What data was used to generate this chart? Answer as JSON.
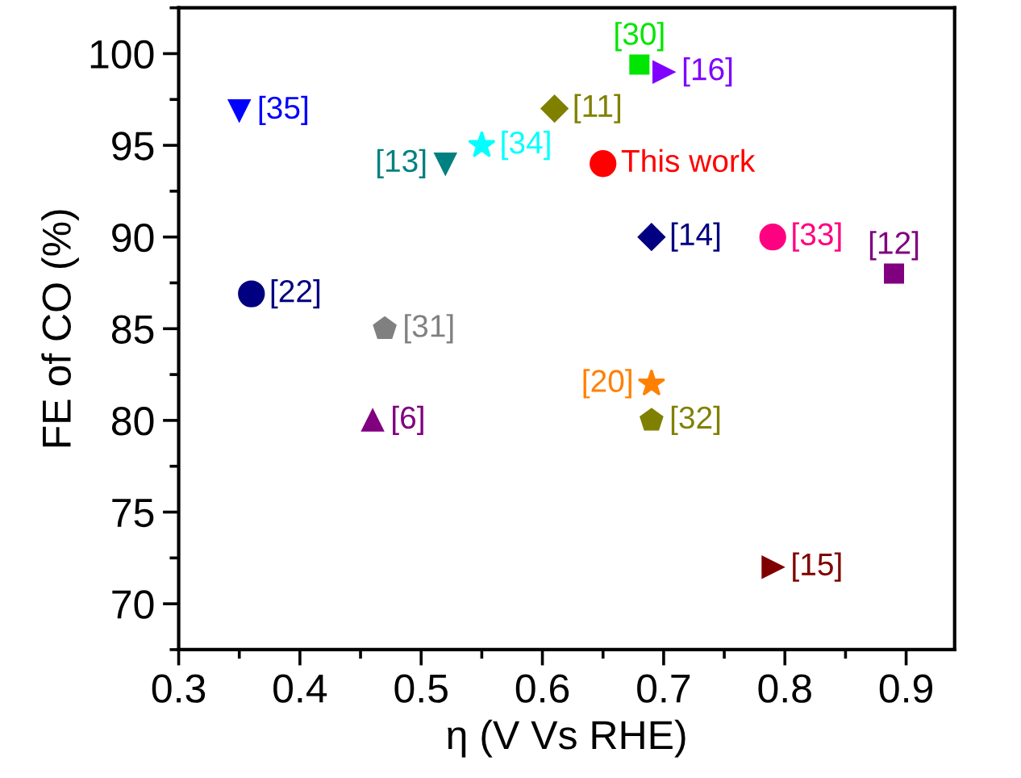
{
  "chart_data": {
    "type": "scatter",
    "xlabel": "η (V Vs RHE)",
    "ylabel": "FE of CO (%)",
    "xlim": [
      0.3,
      0.94
    ],
    "ylim": [
      67.5,
      102.5
    ],
    "xticks": [
      0.3,
      0.4,
      0.5,
      0.6,
      0.7,
      0.8,
      0.9
    ],
    "yticks": [
      70,
      75,
      80,
      85,
      90,
      95,
      100
    ],
    "grid": false,
    "legend": false,
    "series": [
      {
        "name": "[30]",
        "color": "#00e600",
        "marker": "square",
        "x": [
          0.68
        ],
        "values": [
          99.4
        ]
      },
      {
        "name": "[16]",
        "color": "#8000ff",
        "marker": "triangle_right",
        "x": [
          0.7
        ],
        "values": [
          99
        ]
      },
      {
        "name": "[35]",
        "color": "#0000ff",
        "marker": "triangle_down",
        "x": [
          0.35
        ],
        "values": [
          96.9
        ]
      },
      {
        "name": "[11]",
        "color": "#808000",
        "marker": "diamond",
        "x": [
          0.61
        ],
        "values": [
          97
        ]
      },
      {
        "name": "[34]",
        "color": "#00ffff",
        "marker": "star",
        "x": [
          0.55
        ],
        "values": [
          95
        ]
      },
      {
        "name": "[13]",
        "color": "#008080",
        "marker": "triangle_down",
        "x": [
          0.52
        ],
        "values": [
          94
        ]
      },
      {
        "name": "This work",
        "color": "#ff0000",
        "marker": "circle",
        "x": [
          0.65
        ],
        "values": [
          94
        ]
      },
      {
        "name": "[14]",
        "color": "#000080",
        "marker": "diamond",
        "x": [
          0.69
        ],
        "values": [
          90
        ]
      },
      {
        "name": "[33]",
        "color": "#ff0080",
        "marker": "circle",
        "x": [
          0.79
        ],
        "values": [
          90
        ]
      },
      {
        "name": "[12]",
        "color": "#800080",
        "marker": "square",
        "x": [
          0.89
        ],
        "values": [
          88
        ]
      },
      {
        "name": "[22]",
        "color": "#000080",
        "marker": "circle",
        "x": [
          0.36
        ],
        "values": [
          86.9
        ]
      },
      {
        "name": "[31]",
        "color": "#808080",
        "x": [
          0.47
        ],
        "values": [
          85
        ]
      },
      {
        "name": "[20]",
        "color": "#ff8000",
        "marker": "star",
        "x": [
          0.69
        ],
        "values": [
          82
        ]
      },
      {
        "name": "[32]",
        "color": "#808000",
        "x": [
          0.69
        ],
        "values": [
          80
        ]
      },
      {
        "name": "[6]",
        "color": "#800080",
        "marker": "triangle",
        "x": [
          0.46
        ],
        "values": [
          80
        ]
      },
      {
        "name": "[15]",
        "color": "#800000",
        "marker": "triangle_right",
        "x": [
          0.79
        ],
        "values": [
          72
        ]
      }
    ]
  }
}
